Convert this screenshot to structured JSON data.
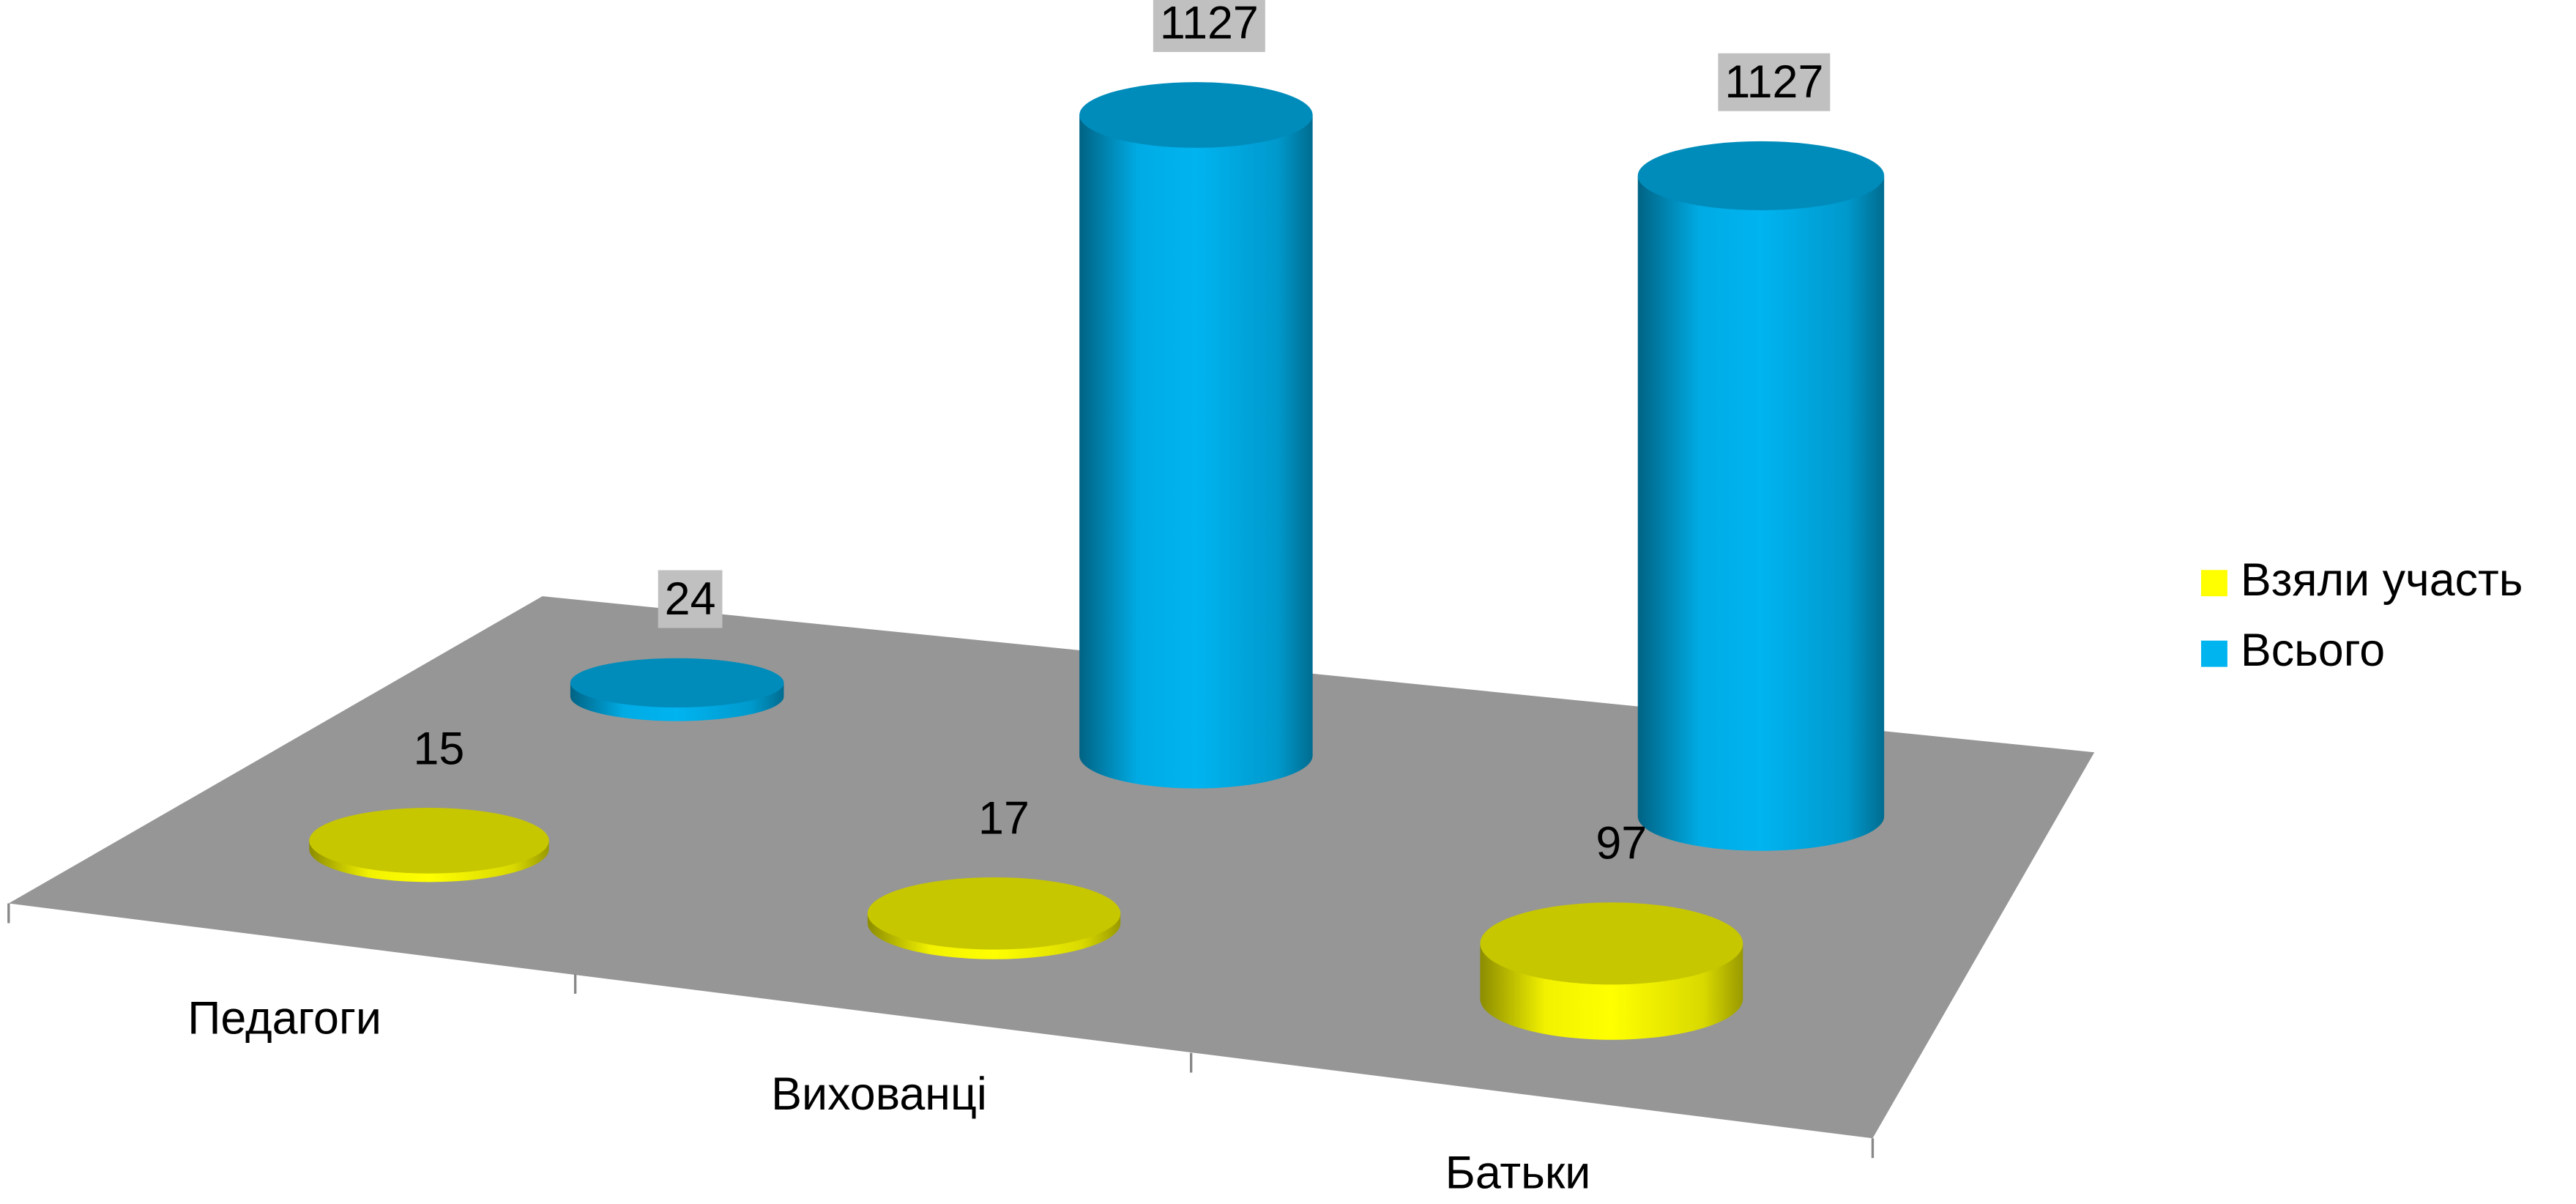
{
  "chart_data": {
    "type": "bar",
    "categories": [
      "Педагоги",
      "Вихованці",
      "Батьки"
    ],
    "series": [
      {
        "name": "Взяли участь",
        "color": "#ffff00",
        "values": [
          15,
          17,
          97
        ]
      },
      {
        "name": "Всього",
        "color": "#00b4f0",
        "values": [
          24,
          1127,
          1127
        ]
      }
    ],
    "legend": "right"
  }
}
